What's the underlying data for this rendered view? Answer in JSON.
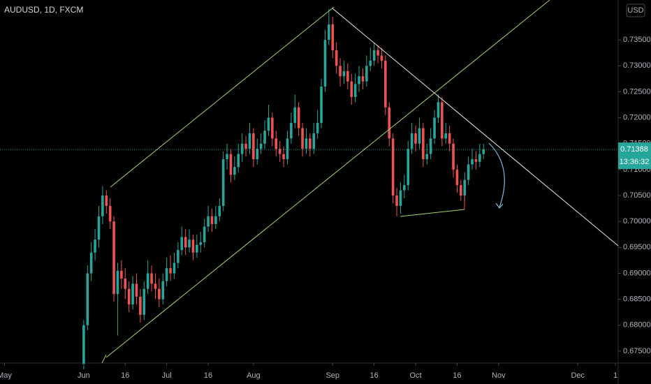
{
  "chart_data": {
    "type": "candlestick",
    "title": "AUDUSD, 1D, FXCM",
    "currency": "USD",
    "last_price": 0.71388,
    "countdown": "13:36:32",
    "up_color": "#26a69a",
    "down_color": "#ef5350",
    "xlim": [
      -22.2,
      141.7
    ],
    "ylim": [
      0.6727,
      0.7427
    ],
    "xticks": [
      {
        "value": -21,
        "label": "May"
      },
      {
        "value": 0,
        "label": "Jun"
      },
      {
        "value": 11,
        "label": "16"
      },
      {
        "value": 22,
        "label": "Jul"
      },
      {
        "value": 33,
        "label": "16"
      },
      {
        "value": 45,
        "label": "Aug"
      },
      {
        "value": 66,
        "label": "Sep"
      },
      {
        "value": 77,
        "label": "16"
      },
      {
        "value": 88,
        "label": "Oct"
      },
      {
        "value": 99,
        "label": "16"
      },
      {
        "value": 110,
        "label": "Nov"
      },
      {
        "value": 131,
        "label": "Dec"
      },
      {
        "value": 141,
        "label": "1"
      }
    ],
    "yticks": [
      {
        "value": 0.675,
        "label": "0.67500"
      },
      {
        "value": 0.68,
        "label": "0.68000"
      },
      {
        "value": 0.685,
        "label": "0.68500"
      },
      {
        "value": 0.69,
        "label": "0.69000"
      },
      {
        "value": 0.695,
        "label": "0.69500"
      },
      {
        "value": 0.7,
        "label": "0.70000"
      },
      {
        "value": 0.705,
        "label": "0.70500"
      },
      {
        "value": 0.71,
        "label": "0.71000"
      },
      {
        "value": 0.715,
        "label": "0.71500"
      },
      {
        "value": 0.72,
        "label": "0.72000"
      },
      {
        "value": 0.725,
        "label": "0.72500"
      },
      {
        "value": 0.73,
        "label": "0.73000"
      },
      {
        "value": 0.735,
        "label": "0.73500"
      }
    ],
    "x": [
      0,
      1,
      2,
      3,
      4,
      5,
      6,
      7,
      8,
      9,
      10,
      11,
      12,
      13,
      14,
      15,
      16,
      17,
      18,
      19,
      20,
      21,
      22,
      23,
      24,
      25,
      26,
      27,
      28,
      29,
      30,
      31,
      32,
      33,
      34,
      35,
      36,
      37,
      38,
      39,
      40,
      41,
      42,
      43,
      44,
      45,
      46,
      47,
      48,
      49,
      50,
      51,
      52,
      53,
      54,
      55,
      56,
      57,
      58,
      59,
      60,
      61,
      62,
      63,
      64,
      65,
      66,
      67,
      68,
      69,
      70,
      71,
      72,
      73,
      74,
      75,
      76,
      77,
      78,
      79,
      80,
      81,
      82,
      83,
      84,
      85,
      86,
      87,
      88,
      89,
      90,
      91,
      92,
      93,
      94,
      95,
      96,
      97,
      98,
      99,
      100,
      101,
      102,
      103,
      104,
      105,
      106
    ],
    "open": [
      0.6725,
      0.68,
      0.69,
      0.694,
      0.6965,
      0.701,
      0.705,
      0.703,
      0.7,
      0.686,
      0.6905,
      0.689,
      0.687,
      0.684,
      0.688,
      0.6855,
      0.682,
      0.687,
      0.69,
      0.688,
      0.687,
      0.685,
      0.6885,
      0.691,
      0.69,
      0.692,
      0.6945,
      0.697,
      0.695,
      0.6965,
      0.694,
      0.6955,
      0.696,
      0.699,
      0.701,
      0.6995,
      0.701,
      0.703,
      0.712,
      0.713,
      0.709,
      0.7105,
      0.713,
      0.715,
      0.714,
      0.717,
      0.712,
      0.714,
      0.715,
      0.7175,
      0.72,
      0.716,
      0.714,
      0.713,
      0.712,
      0.716,
      0.719,
      0.722,
      0.718,
      0.714,
      0.716,
      0.714,
      0.717,
      0.719,
      0.726,
      0.735,
      0.738,
      0.733,
      0.73,
      0.728,
      0.729,
      0.727,
      0.724,
      0.7265,
      0.728,
      0.727,
      0.73,
      0.731,
      0.733,
      0.732,
      0.731,
      0.722,
      0.716,
      0.705,
      0.703,
      0.706,
      0.707,
      0.714,
      0.717,
      0.715,
      0.718,
      0.712,
      0.713,
      0.716,
      0.72,
      0.723,
      0.716,
      0.717,
      0.715,
      0.71,
      0.707,
      0.705,
      0.708,
      0.711,
      0.712,
      0.7115,
      0.713
    ],
    "high": [
      0.681,
      0.6915,
      0.696,
      0.6985,
      0.703,
      0.7068,
      0.706,
      0.7045,
      0.701,
      0.692,
      0.6925,
      0.691,
      0.6885,
      0.6895,
      0.69,
      0.687,
      0.6885,
      0.6925,
      0.6915,
      0.69,
      0.689,
      0.69,
      0.693,
      0.6935,
      0.694,
      0.696,
      0.699,
      0.6985,
      0.6985,
      0.6975,
      0.6975,
      0.698,
      0.7005,
      0.703,
      0.7025,
      0.703,
      0.7045,
      0.7135,
      0.715,
      0.714,
      0.7125,
      0.715,
      0.717,
      0.7165,
      0.719,
      0.718,
      0.716,
      0.717,
      0.7195,
      0.7225,
      0.721,
      0.7175,
      0.7155,
      0.7145,
      0.7175,
      0.721,
      0.7245,
      0.723,
      0.719,
      0.718,
      0.717,
      0.719,
      0.7215,
      0.7275,
      0.737,
      0.741,
      0.7395,
      0.7345,
      0.7315,
      0.731,
      0.7305,
      0.7285,
      0.7285,
      0.73,
      0.7295,
      0.732,
      0.7335,
      0.7345,
      0.734,
      0.7335,
      0.732,
      0.723,
      0.717,
      0.7065,
      0.7075,
      0.709,
      0.7155,
      0.719,
      0.7185,
      0.72,
      0.719,
      0.715,
      0.718,
      0.7215,
      0.7245,
      0.724,
      0.719,
      0.7185,
      0.716,
      0.711,
      0.708,
      0.7095,
      0.7125,
      0.714,
      0.7135,
      0.715,
      0.715
    ],
    "low": [
      0.6715,
      0.679,
      0.6885,
      0.6925,
      0.695,
      0.6995,
      0.7015,
      0.6985,
      0.6845,
      0.678,
      0.687,
      0.685,
      0.6825,
      0.683,
      0.684,
      0.6805,
      0.681,
      0.686,
      0.6865,
      0.685,
      0.6835,
      0.684,
      0.6875,
      0.6885,
      0.689,
      0.691,
      0.6935,
      0.6935,
      0.694,
      0.6925,
      0.693,
      0.694,
      0.695,
      0.698,
      0.698,
      0.6985,
      0.7,
      0.702,
      0.71,
      0.7075,
      0.708,
      0.7095,
      0.7115,
      0.7125,
      0.713,
      0.7105,
      0.711,
      0.713,
      0.714,
      0.7165,
      0.7145,
      0.7125,
      0.7115,
      0.7105,
      0.711,
      0.715,
      0.718,
      0.7165,
      0.7125,
      0.713,
      0.7125,
      0.713,
      0.716,
      0.718,
      0.725,
      0.734,
      0.7315,
      0.7285,
      0.726,
      0.7265,
      0.7255,
      0.7225,
      0.723,
      0.725,
      0.7255,
      0.726,
      0.729,
      0.73,
      0.7305,
      0.7295,
      0.7205,
      0.7145,
      0.7035,
      0.701,
      0.7015,
      0.7045,
      0.706,
      0.713,
      0.7135,
      0.714,
      0.7105,
      0.711,
      0.712,
      0.715,
      0.719,
      0.7145,
      0.715,
      0.7135,
      0.7085,
      0.7055,
      0.704,
      0.704,
      0.707,
      0.71,
      0.71,
      0.7105,
      0.712
    ],
    "close": [
      0.68,
      0.69,
      0.694,
      0.6965,
      0.701,
      0.705,
      0.703,
      0.7,
      0.686,
      0.6905,
      0.689,
      0.687,
      0.684,
      0.688,
      0.6855,
      0.682,
      0.687,
      0.69,
      0.688,
      0.687,
      0.685,
      0.6885,
      0.691,
      0.69,
      0.692,
      0.6945,
      0.697,
      0.695,
      0.6965,
      0.694,
      0.6955,
      0.696,
      0.699,
      0.701,
      0.6995,
      0.701,
      0.703,
      0.712,
      0.713,
      0.709,
      0.7105,
      0.713,
      0.715,
      0.714,
      0.717,
      0.712,
      0.714,
      0.715,
      0.7175,
      0.72,
      0.716,
      0.714,
      0.713,
      0.712,
      0.716,
      0.719,
      0.722,
      0.718,
      0.714,
      0.716,
      0.714,
      0.717,
      0.719,
      0.726,
      0.735,
      0.738,
      0.733,
      0.73,
      0.728,
      0.729,
      0.727,
      0.724,
      0.7265,
      0.728,
      0.727,
      0.73,
      0.731,
      0.733,
      0.732,
      0.731,
      0.722,
      0.716,
      0.705,
      0.703,
      0.706,
      0.707,
      0.714,
      0.717,
      0.715,
      0.718,
      0.712,
      0.713,
      0.716,
      0.72,
      0.723,
      0.716,
      0.717,
      0.715,
      0.71,
      0.707,
      0.705,
      0.708,
      0.711,
      0.712,
      0.7115,
      0.713,
      0.7139
    ]
  }
}
